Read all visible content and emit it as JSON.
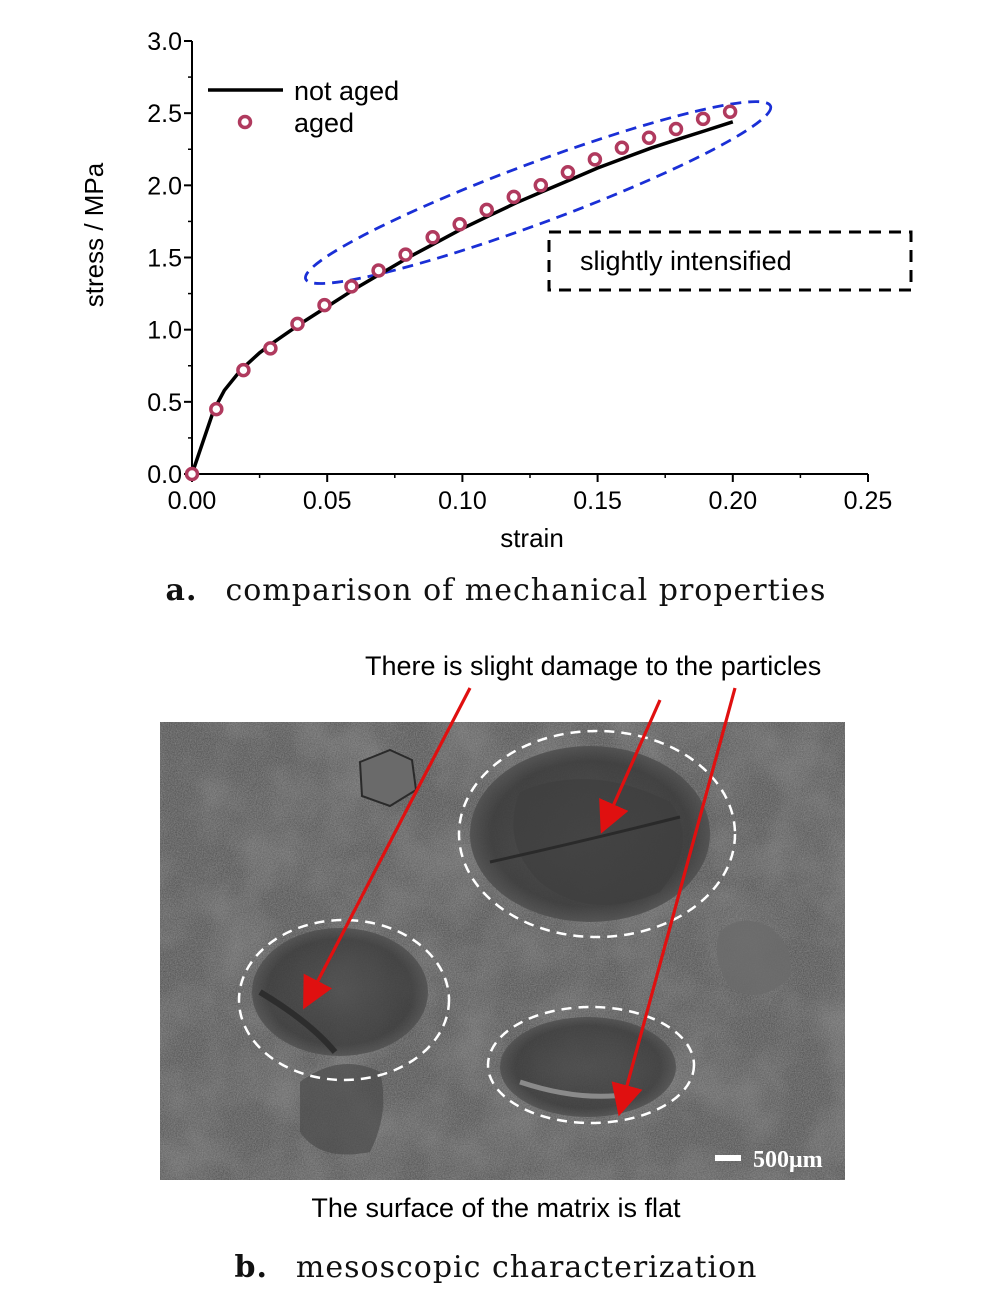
{
  "chart_data": {
    "type": "line",
    "xlabel": "strain",
    "ylabel": "stress / MPa",
    "xlim": [
      0,
      0.25
    ],
    "ylim": [
      0,
      3.0
    ],
    "x_ticks": [
      "0.00",
      "0.05",
      "0.10",
      "0.15",
      "0.20",
      "0.25"
    ],
    "y_ticks": [
      "0.0",
      "0.5",
      "1.0",
      "1.5",
      "2.0",
      "2.5",
      "3.0"
    ],
    "grid": false,
    "legend_position": "top-left",
    "series": [
      {
        "name": "not aged",
        "style": "line",
        "color": "#000000",
        "x": [
          0,
          0.004,
          0.008,
          0.012,
          0.018,
          0.025,
          0.03,
          0.04,
          0.05,
          0.06,
          0.07,
          0.08,
          0.09,
          0.1,
          0.11,
          0.12,
          0.13,
          0.14,
          0.15,
          0.16,
          0.17,
          0.18,
          0.19,
          0.2
        ],
        "y": [
          0,
          0.22,
          0.44,
          0.58,
          0.72,
          0.84,
          0.91,
          1.04,
          1.16,
          1.28,
          1.39,
          1.5,
          1.6,
          1.7,
          1.79,
          1.88,
          1.96,
          2.04,
          2.12,
          2.19,
          2.26,
          2.32,
          2.38,
          2.44
        ]
      },
      {
        "name": "aged",
        "style": "markers",
        "color": "#b03a5e",
        "x": [
          0,
          0.009,
          0.019,
          0.029,
          0.039,
          0.049,
          0.059,
          0.069,
          0.079,
          0.089,
          0.099,
          0.109,
          0.119,
          0.129,
          0.139,
          0.149,
          0.159,
          0.169,
          0.179,
          0.189,
          0.199
        ],
        "y": [
          0.0,
          0.45,
          0.72,
          0.87,
          1.04,
          1.17,
          1.3,
          1.41,
          1.52,
          1.64,
          1.73,
          1.83,
          1.92,
          2.0,
          2.09,
          2.18,
          2.26,
          2.33,
          2.39,
          2.46,
          2.51
        ]
      }
    ],
    "annotations": {
      "ellipse_color": "#1a2fd6",
      "box_label": "slightly intensified"
    }
  },
  "captions": {
    "a_letter": "a.",
    "a_text": "comparison of mechanical properties",
    "b_letter": "b.",
    "b_text": "mesoscopic characterization"
  },
  "sem": {
    "top_note": "There is slight damage to the particles",
    "bottom_note": "The surface of the matrix is flat",
    "scale_bar_label": "500μm",
    "arrow_color": "#e01010"
  }
}
